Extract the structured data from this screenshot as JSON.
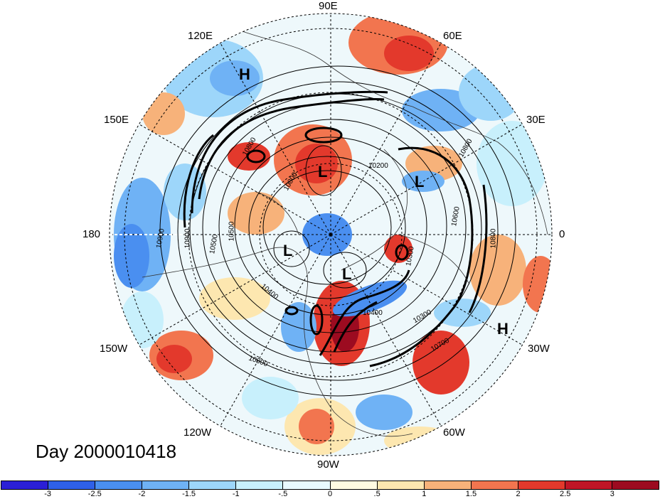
{
  "title": "Day 2000010418",
  "longitude_labels": {
    "lon_90e": "90E",
    "lon_120e": "120E",
    "lon_60e": "60E",
    "lon_150e": "150E",
    "lon_30e": "30E",
    "lon_180": "180",
    "lon_0": "0",
    "lon_150w": "150W",
    "lon_30w": "30W",
    "lon_120w": "120W",
    "lon_60w": "60W",
    "lon_90w": "90W"
  },
  "pressure_centers": {
    "h_pacific": "H",
    "l_siberia": "L",
    "l_europe": "L",
    "l_alaska": "L",
    "l_canada": "L",
    "h_atlantic": "H"
  },
  "contour_labels": [
    "10900",
    "10800",
    "10500",
    "10200",
    "10300",
    "10600",
    "10800",
    "10800",
    "10900",
    "10500",
    "10400",
    "10800",
    "10300",
    "10400",
    "10700",
    "10800"
  ],
  "colorbar": {
    "labels": [
      "-3",
      "-2.5",
      "-2",
      "-1.5",
      "-1",
      "-.5",
      "0",
      ".5",
      "1",
      "1.5",
      "2",
      "2.5",
      "3"
    ],
    "colors": [
      "#2b1fd6",
      "#2f60e8",
      "#4a8ff0",
      "#6fb2f5",
      "#9dd6fa",
      "#c8f0fc",
      "#e9fafe",
      "#fffbe2",
      "#fde7b0",
      "#f7b27a",
      "#f2754f",
      "#e3392c",
      "#c01526",
      "#9c0b20"
    ]
  }
}
